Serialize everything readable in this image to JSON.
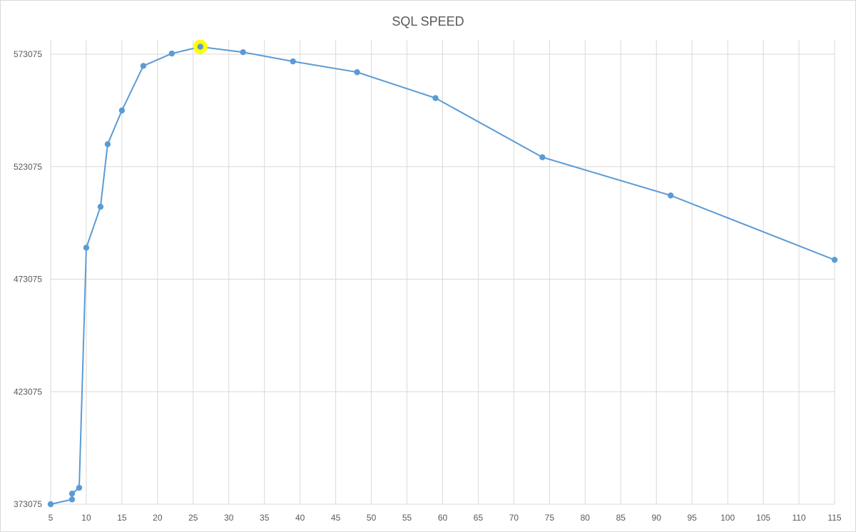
{
  "chart_data": {
    "type": "line",
    "title": "SQL SPEED",
    "xlabel": "",
    "ylabel": "",
    "xlim": [
      5,
      115
    ],
    "ylim": [
      373075,
      573075
    ],
    "x_ticks": [
      5,
      10,
      15,
      20,
      25,
      30,
      35,
      40,
      45,
      50,
      55,
      60,
      65,
      70,
      75,
      80,
      85,
      90,
      95,
      100,
      105,
      110,
      115
    ],
    "y_ticks": [
      373075,
      423075,
      473075,
      523075,
      573075
    ],
    "grid": true,
    "legend": "none",
    "series": [
      {
        "x": [
          5,
          8,
          8,
          9,
          10,
          12,
          13,
          15,
          18,
          22,
          26,
          32,
          39,
          48,
          59,
          74,
          92,
          115
        ],
        "y": [
          373075,
          375175,
          377775,
          380375,
          487075,
          505275,
          533075,
          548075,
          567875,
          573375,
          576375,
          573975,
          569875,
          565075,
          553575,
          527275,
          510275,
          481675
        ]
      }
    ],
    "highlight": {
      "x": 26,
      "y": 576375,
      "color": "#ffff00"
    },
    "colors": {
      "line": "#5b9bd5",
      "grid": "#d9d9d9",
      "text": "#595959"
    }
  }
}
